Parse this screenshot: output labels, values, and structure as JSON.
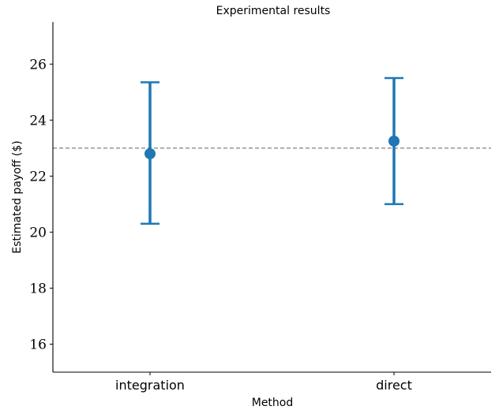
{
  "chart_data": {
    "type": "scatter",
    "title": "Experimental results",
    "xlabel": "Method",
    "ylabel": "Estimated payoff ($)",
    "categories": [
      "integration",
      "direct"
    ],
    "series": [
      {
        "values": [
          22.8,
          23.25
        ],
        "error_low": [
          20.3,
          21.0
        ],
        "error_high": [
          25.35,
          25.5
        ]
      }
    ],
    "reference_line": {
      "y": 23.0,
      "style": "dashed",
      "color": "#808080"
    },
    "ylim": [
      15.0,
      27.5
    ],
    "yticks": [
      16,
      18,
      20,
      22,
      24,
      26
    ],
    "grid": false,
    "legend": "none",
    "colors": {
      "series": "#1f77b4",
      "axis": "#000000"
    }
  }
}
